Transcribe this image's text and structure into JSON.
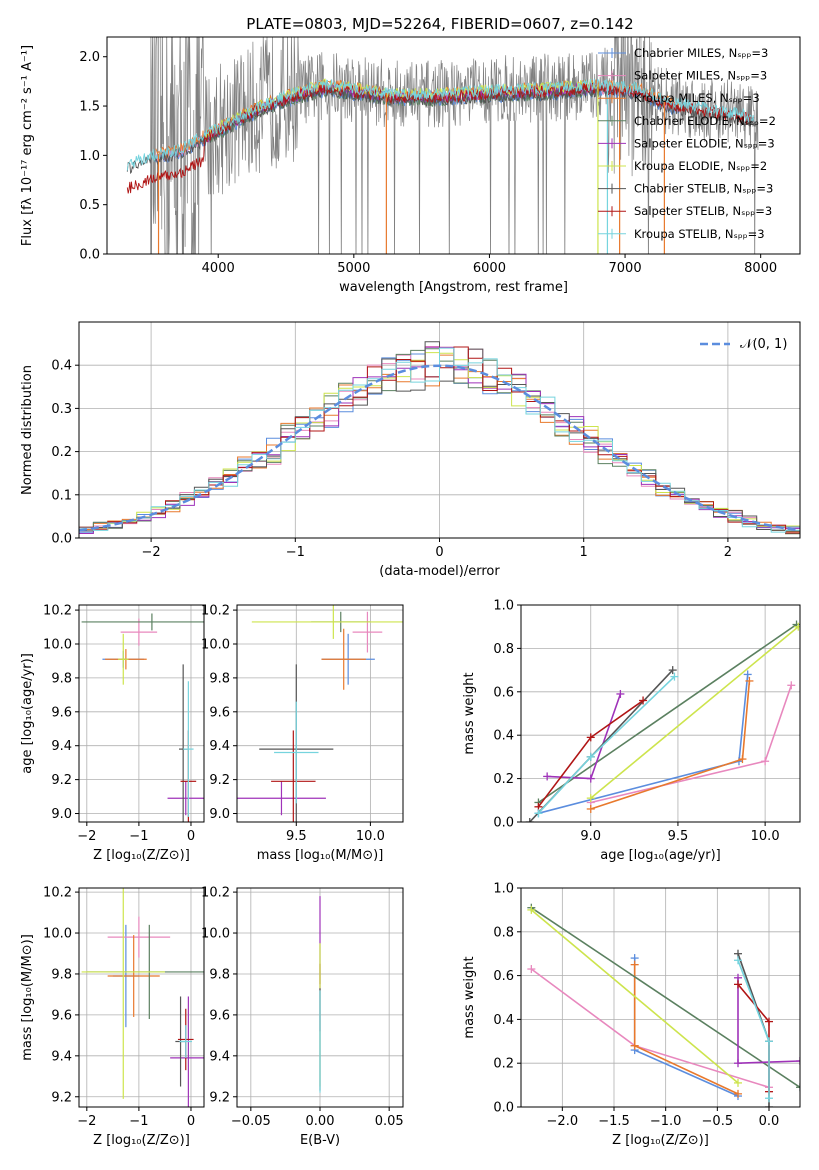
{
  "title": "PLATE=0803, MJD=52264, FIBERID=0607, z=0.142",
  "colors": {
    "chabrier_miles": "#5b8dde",
    "salpeter_miles": "#e888be",
    "kroupa_miles": "#e8792d",
    "chabrier_elodie": "#5b8060",
    "salpeter_elodie": "#9f33b9",
    "kroupa_elodie": "#cde44d",
    "chabrier_stelib": "#555555",
    "salpeter_stelib": "#b01515",
    "kroupa_stelib": "#76d4de",
    "normal": "#5b8dde",
    "grey_spectrum": "#808080"
  },
  "chart_data": [
    {
      "id": "spectrum",
      "type": "line",
      "xlabel": "wavelength [Angstrom, rest frame]",
      "ylabel": "Flux [fλ 10⁻¹⁷ erg cm⁻² s⁻¹ A⁻¹]",
      "xlim": [
        3180,
        8290
      ],
      "ylim": [
        0,
        2.2
      ],
      "xticks": [
        "4000",
        "5000",
        "6000",
        "7000",
        "8000"
      ],
      "yticks": [
        "0.0",
        "0.5",
        "1.0",
        "1.5",
        "2.0"
      ],
      "grid": false,
      "legend_location": "upper right",
      "legend": [
        "Chabrier MILES, Nₛₚₚ=3",
        "Salpeter MILES, Nₛₚₚ=3",
        "Kroupa MILES, Nₛₚₚ=3",
        "Chabrier ELODIE, Nₛₚₚ=2",
        "Salpeter ELODIE, Nₛₚₚ=3",
        "Kroupa ELODIE, Nₛₚₚ=2",
        "Chabrier STELIB, Nₛₚₚ=3",
        "Salpeter STELIB, Nₛₚₚ=3",
        "Kroupa STELIB, Nₛₚₚ=3"
      ],
      "continuum_x": [
        3330,
        3500,
        3700,
        3900,
        4100,
        4300,
        4600,
        4800,
        5000,
        5300,
        5600,
        6000,
        6400,
        6800,
        7100,
        7300,
        7500,
        7700,
        7850,
        7950
      ],
      "continuum_y": [
        0.9,
        1.0,
        1.05,
        1.2,
        1.35,
        1.5,
        1.65,
        1.72,
        1.68,
        1.62,
        1.62,
        1.66,
        1.68,
        1.72,
        1.68,
        1.55,
        1.5,
        1.45,
        1.42,
        1.38
      ]
    },
    {
      "id": "residuals",
      "type": "histogram",
      "xlabel": "(data-model)/error",
      "ylabel": "Normed distribution",
      "xlim": [
        -2.5,
        2.5
      ],
      "ylim": [
        0,
        0.5
      ],
      "xticks": [
        "−2",
        "−1",
        "0",
        "1",
        "2"
      ],
      "yticks": [
        "0.0",
        "0.1",
        "0.2",
        "0.3",
        "0.4"
      ],
      "grid": true,
      "legend": [
        "𝒩(0, 1)"
      ],
      "bin_width": 0.1
    },
    {
      "id": "age_vs_Z",
      "type": "scatter",
      "xlabel": "Z [log₁₀(Z/Z⊙)]",
      "ylabel": "age  [log₁₀(age/yr)]",
      "xlim": [
        -2.15,
        0.25
      ],
      "ylim": [
        8.95,
        10.23
      ],
      "xticks": [
        "−2",
        "−1",
        "0"
      ],
      "yticks": [
        "9.0",
        "9.2",
        "9.4",
        "9.6",
        "9.8",
        "10.0",
        "10.2"
      ],
      "grid": true,
      "points": [
        {
          "c": "chabrier_miles",
          "x": -1.3,
          "y": 9.91,
          "xerr": 0.4,
          "yerr": 0.05
        },
        {
          "c": "salpeter_miles",
          "x": -1.0,
          "y": 10.07,
          "xerr": 0.35,
          "yerr": 0.08
        },
        {
          "c": "kroupa_miles",
          "x": -1.25,
          "y": 9.91,
          "xerr": 0.4,
          "yerr": 0.06
        },
        {
          "c": "chabrier_elodie",
          "x": -0.75,
          "y": 10.13,
          "xerr": 1.35,
          "yerr": 0.05
        },
        {
          "c": "salpeter_elodie",
          "x": -0.1,
          "y": 9.09,
          "xerr": 0.35,
          "yerr": 0.1
        },
        {
          "c": "kroupa_elodie",
          "x": -1.3,
          "y": 9.91,
          "xerr": 0.1,
          "yerr": 0.15
        },
        {
          "c": "chabrier_stelib",
          "x": -0.15,
          "y": 9.38,
          "xerr": 0.08,
          "yerr": 0.5
        },
        {
          "c": "salpeter_stelib",
          "x": -0.05,
          "y": 9.19,
          "xerr": 0.15,
          "yerr": 0.3
        },
        {
          "c": "kroupa_stelib",
          "x": -0.05,
          "y": 9.38,
          "xerr": 0.1,
          "yerr": 0.4
        }
      ]
    },
    {
      "id": "age_vs_mass",
      "type": "scatter",
      "xlabel": "mass [log₁₀(M/M⊙)]",
      "ylabel": "",
      "xlim": [
        9.1,
        10.22
      ],
      "ylim": [
        8.95,
        10.23
      ],
      "xticks": [
        "9.5",
        "10.0"
      ],
      "yticks": [
        "9.0",
        "9.2",
        "9.4",
        "9.6",
        "9.8",
        "10.0",
        "10.2"
      ],
      "grid": true,
      "points": [
        {
          "c": "chabrier_miles",
          "x": 9.85,
          "y": 9.91,
          "xerr": 0.18,
          "yerr": 0.15
        },
        {
          "c": "salpeter_miles",
          "x": 9.98,
          "y": 10.07,
          "xerr": 0.1,
          "yerr": 0.12
        },
        {
          "c": "kroupa_miles",
          "x": 9.82,
          "y": 9.91,
          "xerr": 0.15,
          "yerr": 0.18
        },
        {
          "c": "chabrier_elodie",
          "x": 9.8,
          "y": 10.13,
          "xerr": 0.2,
          "yerr": 0.06
        },
        {
          "c": "salpeter_elodie",
          "x": 9.4,
          "y": 9.09,
          "xerr": 0.3,
          "yerr": 0.1
        },
        {
          "c": "kroupa_elodie",
          "x": 9.75,
          "y": 10.13,
          "xerr": 0.55,
          "yerr": 0.1
        },
        {
          "c": "chabrier_stelib",
          "x": 9.5,
          "y": 9.38,
          "xerr": 0.25,
          "yerr": 0.5
        },
        {
          "c": "salpeter_stelib",
          "x": 9.48,
          "y": 9.19,
          "xerr": 0.15,
          "yerr": 0.3
        },
        {
          "c": "kroupa_stelib",
          "x": 9.5,
          "y": 9.36,
          "xerr": 0.15,
          "yerr": 0.3
        }
      ]
    },
    {
      "id": "weight_vs_age",
      "type": "line",
      "xlabel": "age  [log₁₀(age/yr)]",
      "ylabel": "mass weight",
      "xlim": [
        8.6,
        10.2
      ],
      "ylim": [
        0,
        1.0
      ],
      "xticks": [
        "9.0",
        "9.5",
        "10.0"
      ],
      "yticks": [
        "0.0",
        "0.2",
        "0.4",
        "0.6",
        "0.8",
        "1.0"
      ],
      "grid": true,
      "series": [
        {
          "c": "chabrier_miles",
          "x": [
            8.7,
            9.85,
            9.9
          ],
          "y": [
            0.04,
            0.28,
            0.68
          ]
        },
        {
          "c": "salpeter_miles",
          "x": [
            9.0,
            10.0,
            10.15
          ],
          "y": [
            0.09,
            0.28,
            0.63
          ]
        },
        {
          "c": "kroupa_miles",
          "x": [
            9.0,
            9.87,
            9.91
          ],
          "y": [
            0.06,
            0.29,
            0.65
          ]
        },
        {
          "c": "chabrier_elodie",
          "x": [
            8.7,
            10.18
          ],
          "y": [
            0.09,
            0.91
          ]
        },
        {
          "c": "salpeter_elodie",
          "x": [
            8.75,
            9.0,
            9.17
          ],
          "y": [
            0.21,
            0.2,
            0.59
          ]
        },
        {
          "c": "kroupa_elodie",
          "x": [
            9.0,
            10.19
          ],
          "y": [
            0.11,
            0.9
          ]
        },
        {
          "c": "chabrier_stelib",
          "x": [
            8.65,
            9.0,
            9.47
          ],
          "y": [
            0.0,
            0.3,
            0.7
          ]
        },
        {
          "c": "salpeter_stelib",
          "x": [
            8.7,
            9.0,
            9.3
          ],
          "y": [
            0.07,
            0.39,
            0.56
          ]
        },
        {
          "c": "kroupa_stelib",
          "x": [
            8.7,
            9.0,
            9.48
          ],
          "y": [
            0.04,
            0.3,
            0.67
          ]
        }
      ]
    },
    {
      "id": "mass_vs_Z",
      "type": "scatter",
      "xlabel": "Z [log₁₀(Z/Z⊙)]",
      "ylabel": "mass [log₁₀(M/M⊙)]",
      "xlim": [
        -2.15,
        0.25
      ],
      "ylim": [
        9.15,
        10.22
      ],
      "xticks": [
        "−2",
        "−1",
        "0"
      ],
      "yticks": [
        "9.2",
        "9.4",
        "9.6",
        "9.8",
        "10.0",
        "10.2"
      ],
      "grid": true,
      "points": [
        {
          "c": "chabrier_miles",
          "x": -1.25,
          "y": 9.79,
          "xerr": 0.25,
          "yerr": 0.25
        },
        {
          "c": "salpeter_miles",
          "x": -1.0,
          "y": 9.98,
          "xerr": 0.6,
          "yerr": 0.1
        },
        {
          "c": "kroupa_miles",
          "x": -1.1,
          "y": 9.79,
          "xerr": 0.5,
          "yerr": 0.2
        },
        {
          "c": "chabrier_elodie",
          "x": -0.8,
          "y": 9.81,
          "xerr": 1.2,
          "yerr": 0.23
        },
        {
          "c": "salpeter_elodie",
          "x": -0.05,
          "y": 9.39,
          "xerr": 0.35,
          "yerr": 0.3
        },
        {
          "c": "kroupa_elodie",
          "x": -1.3,
          "y": 9.81,
          "xerr": 0.8,
          "yerr": 0.62
        },
        {
          "c": "chabrier_stelib",
          "x": -0.2,
          "y": 9.47,
          "xerr": 0.1,
          "yerr": 0.22
        },
        {
          "c": "salpeter_stelib",
          "x": -0.1,
          "y": 9.48,
          "xerr": 0.15,
          "yerr": 0.15
        },
        {
          "c": "kroupa_stelib",
          "x": -0.1,
          "y": 9.47,
          "xerr": 0.12,
          "yerr": 0.08
        }
      ]
    },
    {
      "id": "mass_vs_ebv",
      "type": "scatter",
      "xlabel": "E(B-V)",
      "ylabel": "",
      "xlim": [
        -0.06,
        0.06
      ],
      "ylim": [
        9.15,
        10.22
      ],
      "xticks": [
        "−0.05",
        "0.00",
        "0.05"
      ],
      "yticks": [
        "9.2",
        "9.4",
        "9.6",
        "9.8",
        "10.0",
        "10.2"
      ],
      "grid": true,
      "points": [
        {
          "c": "salpeter_elodie",
          "x": 0.0,
          "y": 9.85,
          "xerr": 0.0,
          "yerr": 0.33
        },
        {
          "c": "salpeter_stelib",
          "x": 0.0,
          "y": 9.8,
          "xerr": 0.0,
          "yerr": 0.05
        },
        {
          "c": "kroupa_elodie",
          "x": 0.0,
          "y": 9.6,
          "xerr": 0.0,
          "yerr": 0.35
        },
        {
          "c": "chabrier_stelib",
          "x": 0.0,
          "y": 9.48,
          "xerr": 0.0,
          "yerr": 0.25
        },
        {
          "c": "kroupa_stelib",
          "x": 0.0,
          "y": 9.47,
          "xerr": 0.0,
          "yerr": 0.25
        }
      ]
    },
    {
      "id": "weight_vs_Z",
      "type": "line",
      "xlabel": "Z [log₁₀(Z/Z⊙)]",
      "ylabel": "mass weight",
      "xlim": [
        -2.4,
        0.3
      ],
      "ylim": [
        0,
        1.0
      ],
      "xticks": [
        "−2.0",
        "−1.5",
        "−1.0",
        "−0.5",
        "0.0"
      ],
      "yticks": [
        "0.0",
        "0.2",
        "0.4",
        "0.6",
        "0.8",
        "1.0"
      ],
      "grid": true,
      "series": [
        {
          "c": "chabrier_miles",
          "x": [
            -1.3,
            -1.3,
            -0.3
          ],
          "y": [
            0.68,
            0.26,
            0.05
          ]
        },
        {
          "c": "salpeter_miles",
          "x": [
            -2.3,
            -1.3,
            0.0
          ],
          "y": [
            0.63,
            0.28,
            0.09
          ]
        },
        {
          "c": "kroupa_miles",
          "x": [
            -1.3,
            -1.3,
            -0.3
          ],
          "y": [
            0.65,
            0.28,
            0.06
          ]
        },
        {
          "c": "chabrier_elodie",
          "x": [
            -2.3,
            0.3
          ],
          "y": [
            0.91,
            0.09
          ]
        },
        {
          "c": "salpeter_elodie",
          "x": [
            -0.3,
            -0.3,
            0.3
          ],
          "y": [
            0.59,
            0.2,
            0.21
          ]
        },
        {
          "c": "kroupa_elodie",
          "x": [
            -2.3,
            -0.3
          ],
          "y": [
            0.9,
            0.11
          ]
        },
        {
          "c": "chabrier_stelib",
          "x": [
            -0.3,
            0.0,
            0.0
          ],
          "y": [
            0.7,
            0.3,
            0.0
          ]
        },
        {
          "c": "salpeter_stelib",
          "x": [
            -0.3,
            0.0,
            0.0
          ],
          "y": [
            0.56,
            0.39,
            0.07
          ]
        },
        {
          "c": "kroupa_stelib",
          "x": [
            -0.3,
            0.0,
            0.0
          ],
          "y": [
            0.67,
            0.3,
            0.04
          ]
        }
      ]
    }
  ]
}
